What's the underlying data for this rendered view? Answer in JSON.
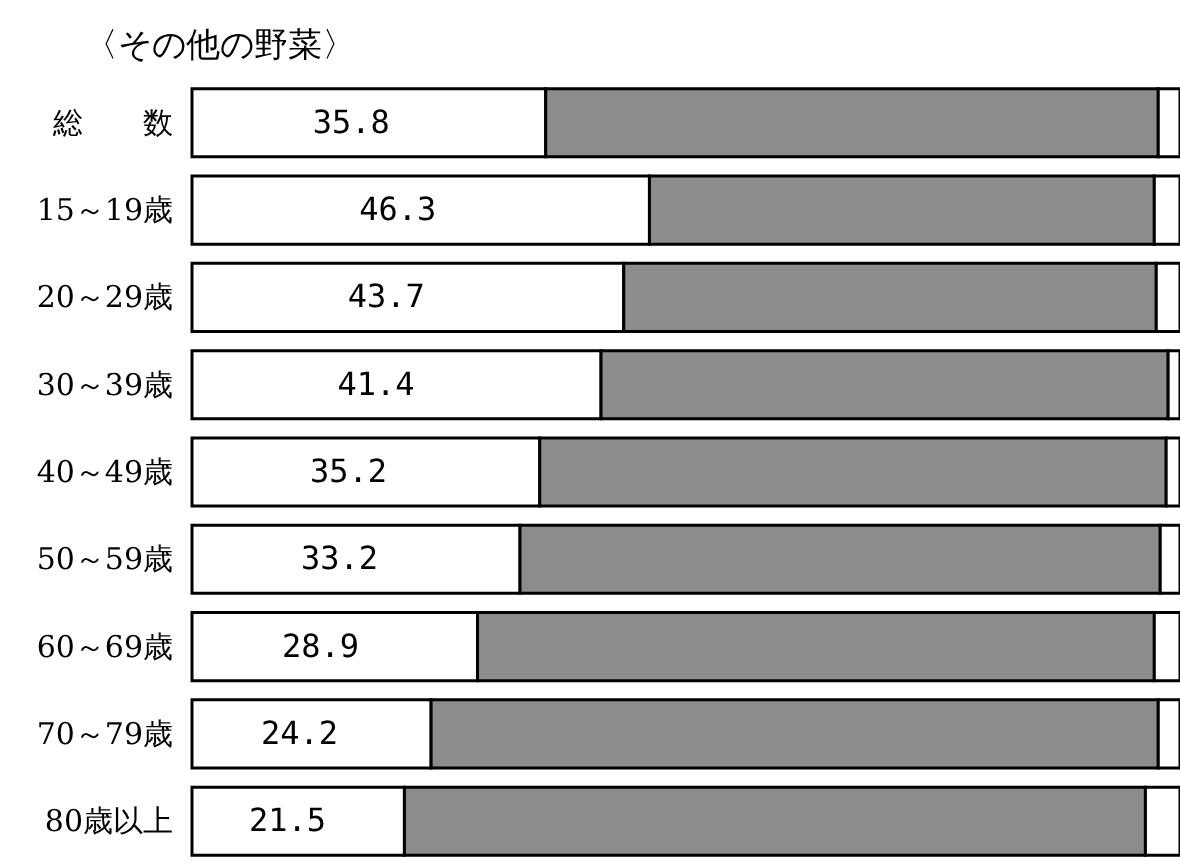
{
  "chart_data": {
    "type": "bar",
    "title": "〈その他の野菜〉",
    "orientation": "horizontal",
    "stacked": true,
    "categories": [
      "総　　数",
      "15～19歳",
      "20～29歳",
      "30～39歳",
      "40～49歳",
      "50～59歳",
      "60～69歳",
      "70～79歳",
      "80歳以上"
    ],
    "xlim": [
      0,
      100
    ],
    "series": [
      {
        "color": "#ffffff",
        "values": [
          35.8,
          46.3,
          43.7,
          41.4,
          35.2,
          33.2,
          28.9,
          24.2,
          21.5
        ],
        "value_labels": [
          "35.8",
          "46.3",
          "43.7",
          "41.4",
          "35.2",
          "33.2",
          "28.9",
          "24.2",
          "21.5"
        ]
      },
      {
        "color": "#8c8c8c",
        "values": [
          62.0,
          51.1,
          53.9,
          57.4,
          63.4,
          64.8,
          68.5,
          73.6,
          75.0
        ]
      },
      {
        "color": "#ffffff",
        "values": [
          2.2,
          2.6,
          2.4,
          1.2,
          1.4,
          2.0,
          2.6,
          2.2,
          3.5
        ]
      }
    ]
  }
}
